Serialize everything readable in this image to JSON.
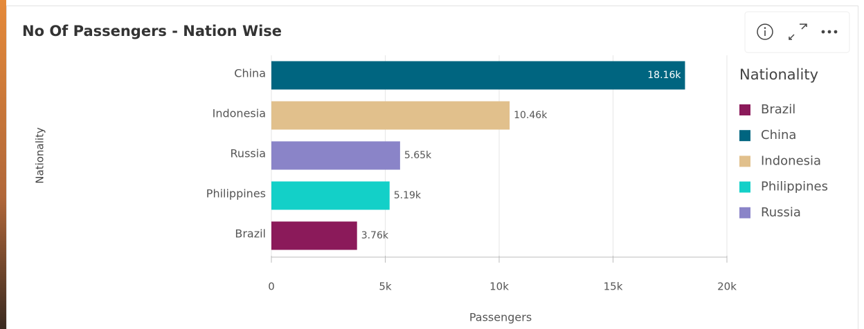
{
  "chart_data": {
    "type": "hbar",
    "title": "No Of Passengers - Nation Wise",
    "x_label": "Passengers",
    "y_label": "Nationality",
    "categories": [
      "China",
      "Indonesia",
      "Russia",
      "Philippines",
      "Brazil"
    ],
    "values": [
      18160,
      10460,
      5650,
      5190,
      3760
    ],
    "value_labels": [
      "18.16k",
      "10.46k",
      "5.65k",
      "5.19k",
      "3.76k"
    ],
    "colors": [
      "#006580",
      "#e1c08c",
      "#8a84c8",
      "#13d0c8",
      "#8b1a5a"
    ],
    "xlim": [
      0,
      20000
    ],
    "xticks": [
      0,
      {
        "value": 5000,
        "label": "5k"
      },
      {
        "value": 10000,
        "label": "10k"
      },
      {
        "value": 15000,
        "label": "15k"
      },
      {
        "value": 20000,
        "label": "20k"
      }
    ],
    "grid": true,
    "legend": {
      "title": "Nationality",
      "position": "right",
      "items": [
        {
          "name": "Brazil",
          "color": "#8b1a5a"
        },
        {
          "name": "China",
          "color": "#006580"
        },
        {
          "name": "Indonesia",
          "color": "#e1c08c"
        },
        {
          "name": "Philippines",
          "color": "#13d0c8"
        },
        {
          "name": "Russia",
          "color": "#8a84c8"
        }
      ]
    }
  }
}
